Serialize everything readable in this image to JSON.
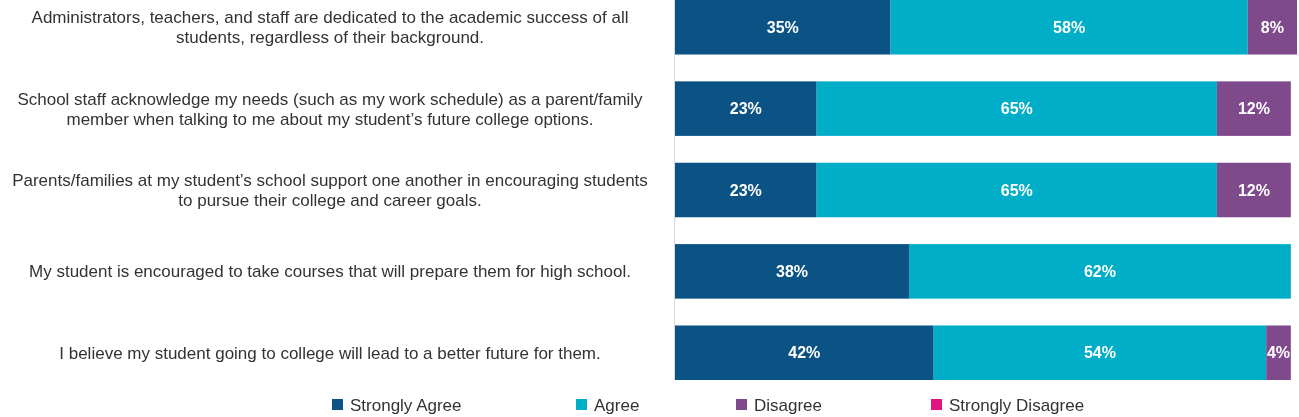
{
  "chart_data": {
    "type": "bar",
    "orientation": "horizontal",
    "stacked": true,
    "categories": [
      "Administrators, teachers, and staff are dedicated to the academic success of all students, regardless of their background.",
      "School staff acknowledge my needs (such as my work schedule) as a parent/family member when talking to me about my student’s future college options.",
      "Parents/families at my student’s school support one another in encouraging students to pursue their college and career goals.",
      "My student is encouraged to take courses that will prepare them for high school.",
      "I believe my student going to college will lead to a better future for them."
    ],
    "xlim": [
      0,
      101
    ],
    "series": [
      {
        "name": "Strongly Agree",
        "color": "#0b5384",
        "values": [
          35,
          23,
          23,
          38,
          42
        ],
        "value_labels": [
          "35%",
          "23%",
          "23%",
          "38%",
          "42%"
        ]
      },
      {
        "name": "Agree",
        "color": "#00aec7",
        "values": [
          58,
          65,
          65,
          62,
          54
        ],
        "value_labels": [
          "58%",
          "65%",
          "65%",
          "62%",
          "54%"
        ]
      },
      {
        "name": "Disagree",
        "color": "#7f4a8c",
        "values": [
          8,
          12,
          12,
          null,
          4
        ],
        "value_labels": [
          "8%",
          "12%",
          "12%",
          null,
          "4%"
        ]
      },
      {
        "name": "Strongly Disagree",
        "color": "#e0157f",
        "values": [
          null,
          null,
          null,
          null,
          null
        ]
      }
    ],
    "legend": "bottom"
  }
}
